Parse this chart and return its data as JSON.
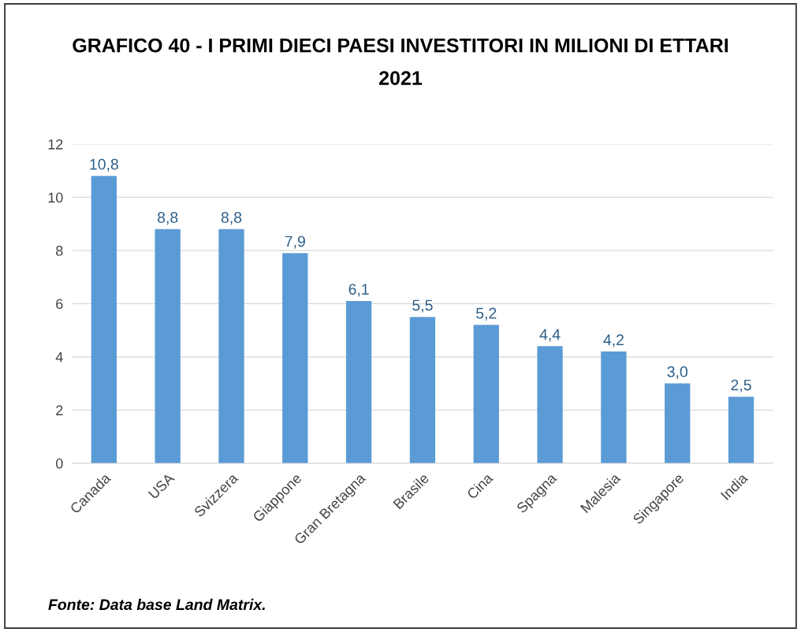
{
  "chart_data": {
    "type": "bar",
    "title": "GRAFICO 40 - I PRIMI DIECI PAESI INVESTITORI IN MILIONI DI ETTARI\n2021",
    "categories": [
      "Canada",
      "USA",
      "Svizzera",
      "Giappone",
      "Gran Bretagna",
      "Brasile",
      "Cina",
      "Spagna",
      "Malesia",
      "Singapore",
      "India"
    ],
    "values": [
      10.8,
      8.8,
      8.8,
      7.9,
      6.1,
      5.5,
      5.2,
      4.4,
      4.2,
      3.0,
      2.5
    ],
    "value_labels": [
      "10,8",
      "8,8",
      "8,8",
      "7,9",
      "6,1",
      "5,5",
      "5,2",
      "4,4",
      "4,2",
      "3,0",
      "2,5"
    ],
    "color": "#5b9bd5",
    "ylim": [
      0,
      12
    ],
    "yticks": [
      0,
      2,
      4,
      6,
      8,
      10,
      12
    ],
    "grid": "y",
    "annotations": [
      "Fonte: Data base Land Matrix."
    ]
  }
}
